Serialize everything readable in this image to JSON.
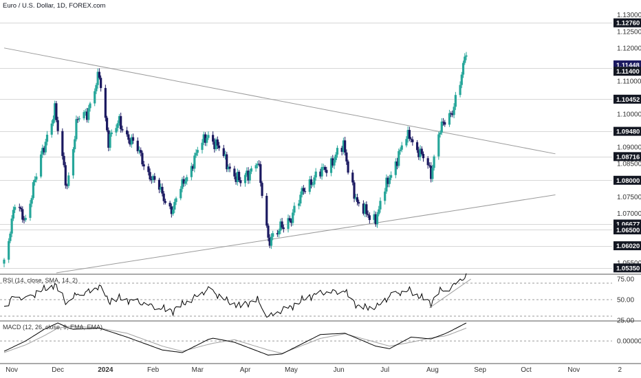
{
  "title": "Euro / U.S. Dollar, 1D, FOREX.com",
  "colors": {
    "up": "#26a69a",
    "down": "#1b1960",
    "line": "#000000",
    "signal": "#a0a0a0",
    "level": "#d6d6d6",
    "trend": "#9a9a9a",
    "label_dark": "#131722",
    "label_current": "#1b1960"
  },
  "chart_data": {
    "type": "candlestick",
    "price_axis": {
      "min": 1.0518,
      "max": 1.1316,
      "ticks": [
        "1.13000",
        "1.12500",
        "1.12000",
        "1.11500",
        "1.11000",
        "1.10000",
        "1.09500",
        "1.09000",
        "1.08500",
        "1.08000",
        "1.07500",
        "1.07000",
        "1.06500",
        "1.06000",
        "1.05500"
      ]
    },
    "x_axis": {
      "labels": [
        {
          "text": "Nov",
          "date": "2023-11-01",
          "bold": false
        },
        {
          "text": "Dec",
          "date": "2023-12-01",
          "bold": false
        },
        {
          "text": "2024",
          "date": "2024-01-01",
          "bold": true
        },
        {
          "text": "Feb",
          "date": "2024-02-01",
          "bold": false
        },
        {
          "text": "Mar",
          "date": "2024-03-01",
          "bold": false
        },
        {
          "text": "Apr",
          "date": "2024-04-01",
          "bold": false
        },
        {
          "text": "May",
          "date": "2024-05-01",
          "bold": false
        },
        {
          "text": "Jun",
          "date": "2024-06-01",
          "bold": false
        },
        {
          "text": "Jul",
          "date": "2024-07-01",
          "bold": false
        },
        {
          "text": "Aug",
          "date": "2024-08-01",
          "bold": false
        },
        {
          "text": "Sep",
          "date": "2024-09-01",
          "bold": false
        },
        {
          "text": "Oct",
          "date": "2024-10-01",
          "bold": false
        },
        {
          "text": "Nov",
          "date": "2024-11-01",
          "bold": false
        },
        {
          "text": "2",
          "date": "2024-12-01",
          "bold": false
        }
      ]
    },
    "levels": [
      {
        "value": "1.12760",
        "style": "dark"
      },
      {
        "value": "1.11448",
        "style": "current"
      },
      {
        "value": "1.11400",
        "style": "dark"
      },
      {
        "value": "1.10452",
        "style": "dark"
      },
      {
        "value": "1.09480",
        "style": "dark"
      },
      {
        "value": "1.08716",
        "style": "dark"
      },
      {
        "value": "1.08000",
        "style": "dark"
      },
      {
        "value": "1.06677",
        "style": "dark"
      },
      {
        "value": "1.06500",
        "style": "dark"
      },
      {
        "value": "1.06020",
        "style": "dark"
      },
      {
        "value": "1.05350",
        "style": "dark"
      }
    ],
    "trendlines": [
      {
        "from": {
          "date": "2023-10-27",
          "price": 1.12
        },
        "to": {
          "date": "2024-10-20",
          "price": 1.088
        }
      },
      {
        "from": {
          "date": "2023-11-30",
          "price": 1.052
        },
        "to": {
          "date": "2024-10-20",
          "price": 1.0756
        }
      }
    ],
    "anchors": [
      {
        "date": "2023-10-27",
        "close": 1.056
      },
      {
        "date": "2023-11-03",
        "close": 1.072
      },
      {
        "date": "2023-11-10",
        "close": 1.0685
      },
      {
        "date": "2023-11-22",
        "close": 1.0905
      },
      {
        "date": "2023-11-29",
        "close": 1.101
      },
      {
        "date": "2023-12-07",
        "close": 1.078
      },
      {
        "date": "2023-12-14",
        "close": 1.099
      },
      {
        "date": "2023-12-21",
        "close": 1.101
      },
      {
        "date": "2023-12-28",
        "close": 1.112
      },
      {
        "date": "2024-01-03",
        "close": 1.092
      },
      {
        "date": "2024-01-10",
        "close": 1.0975
      },
      {
        "date": "2024-01-23",
        "close": 1.088
      },
      {
        "date": "2024-02-02",
        "close": 1.079
      },
      {
        "date": "2024-02-14",
        "close": 1.071
      },
      {
        "date": "2024-02-23",
        "close": 1.082
      },
      {
        "date": "2024-03-08",
        "close": 1.0945
      },
      {
        "date": "2024-03-19",
        "close": 1.086
      },
      {
        "date": "2024-03-29",
        "close": 1.079
      },
      {
        "date": "2024-04-09",
        "close": 1.086
      },
      {
        "date": "2024-04-16",
        "close": 1.062
      },
      {
        "date": "2024-04-30",
        "close": 1.068
      },
      {
        "date": "2024-05-10",
        "close": 1.078
      },
      {
        "date": "2024-05-22",
        "close": 1.083
      },
      {
        "date": "2024-06-04",
        "close": 1.09
      },
      {
        "date": "2024-06-14",
        "close": 1.071
      },
      {
        "date": "2024-06-26",
        "close": 1.069
      },
      {
        "date": "2024-07-05",
        "close": 1.083
      },
      {
        "date": "2024-07-17",
        "close": 1.094
      },
      {
        "date": "2024-07-31",
        "close": 1.082
      },
      {
        "date": "2024-08-05",
        "close": 1.095
      },
      {
        "date": "2024-08-13",
        "close": 1.0995
      },
      {
        "date": "2024-08-21",
        "close": 1.114
      },
      {
        "date": "2024-08-23",
        "close": 1.119
      }
    ],
    "rsi": {
      "label": "RSI (14, close, SMA, 14, 2)",
      "min": 25,
      "max": 80,
      "ticks": [
        "75.00",
        "50.00",
        "25.00"
      ],
      "band": [
        30,
        70
      ],
      "anchors": [
        {
          "date": "2023-10-27",
          "value": 42
        },
        {
          "date": "2023-11-03",
          "value": 55
        },
        {
          "date": "2023-11-10",
          "value": 50
        },
        {
          "date": "2023-11-22",
          "value": 63
        },
        {
          "date": "2023-11-29",
          "value": 68
        },
        {
          "date": "2023-12-07",
          "value": 45
        },
        {
          "date": "2023-12-14",
          "value": 58
        },
        {
          "date": "2023-12-21",
          "value": 60
        },
        {
          "date": "2023-12-28",
          "value": 66
        },
        {
          "date": "2024-01-03",
          "value": 48
        },
        {
          "date": "2024-01-10",
          "value": 52
        },
        {
          "date": "2024-01-23",
          "value": 46
        },
        {
          "date": "2024-02-02",
          "value": 42
        },
        {
          "date": "2024-02-14",
          "value": 36
        },
        {
          "date": "2024-02-23",
          "value": 48
        },
        {
          "date": "2024-03-08",
          "value": 62
        },
        {
          "date": "2024-03-19",
          "value": 50
        },
        {
          "date": "2024-03-29",
          "value": 42
        },
        {
          "date": "2024-04-09",
          "value": 50
        },
        {
          "date": "2024-04-16",
          "value": 30
        },
        {
          "date": "2024-04-30",
          "value": 40
        },
        {
          "date": "2024-05-10",
          "value": 52
        },
        {
          "date": "2024-05-22",
          "value": 58
        },
        {
          "date": "2024-06-04",
          "value": 62
        },
        {
          "date": "2024-06-14",
          "value": 40
        },
        {
          "date": "2024-06-26",
          "value": 42
        },
        {
          "date": "2024-07-05",
          "value": 55
        },
        {
          "date": "2024-07-17",
          "value": 62
        },
        {
          "date": "2024-07-31",
          "value": 45
        },
        {
          "date": "2024-08-05",
          "value": 60
        },
        {
          "date": "2024-08-13",
          "value": 65
        },
        {
          "date": "2024-08-21",
          "value": 76
        },
        {
          "date": "2024-08-23",
          "value": 77
        }
      ],
      "trendline": {
        "from": {
          "date": "2024-07-30",
          "value": 40
        },
        "to": {
          "date": "2024-08-26",
          "value": 75
        }
      }
    },
    "macd": {
      "label": "MACD (12, 26, close, 9, EMA, EMA)",
      "min": -0.0085,
      "max": 0.0075,
      "ticks": [
        "0.00000"
      ],
      "anchors": [
        {
          "date": "2023-10-27",
          "macd": -0.004,
          "signal": -0.0045
        },
        {
          "date": "2023-11-10",
          "macd": 0.0,
          "signal": -0.0015
        },
        {
          "date": "2023-11-22",
          "macd": 0.0045,
          "signal": 0.002
        },
        {
          "date": "2023-12-01",
          "macd": 0.007,
          "signal": 0.005
        },
        {
          "date": "2023-12-10",
          "macd": 0.0045,
          "signal": 0.0058
        },
        {
          "date": "2023-12-28",
          "macd": 0.005,
          "signal": 0.005
        },
        {
          "date": "2024-01-15",
          "macd": 0.0015,
          "signal": 0.003
        },
        {
          "date": "2024-02-07",
          "macd": -0.0035,
          "signal": -0.002
        },
        {
          "date": "2024-02-20",
          "macd": -0.0045,
          "signal": -0.004
        },
        {
          "date": "2024-03-10",
          "macd": 0.0012,
          "signal": -0.001
        },
        {
          "date": "2024-03-25",
          "macd": -0.0005,
          "signal": 0.0005
        },
        {
          "date": "2024-04-16",
          "macd": -0.0055,
          "signal": -0.0035
        },
        {
          "date": "2024-04-25",
          "macd": -0.005,
          "signal": -0.0048
        },
        {
          "date": "2024-05-20",
          "macd": 0.0025,
          "signal": 0.001
        },
        {
          "date": "2024-06-05",
          "macd": 0.003,
          "signal": 0.0028
        },
        {
          "date": "2024-06-25",
          "macd": -0.002,
          "signal": -0.0005
        },
        {
          "date": "2024-07-04",
          "macd": -0.003,
          "signal": -0.002
        },
        {
          "date": "2024-07-18",
          "macd": 0.0015,
          "signal": -0.0005
        },
        {
          "date": "2024-07-31",
          "macd": 0.0008,
          "signal": 0.0012
        },
        {
          "date": "2024-08-10",
          "macd": 0.003,
          "signal": 0.002
        },
        {
          "date": "2024-08-23",
          "macd": 0.007,
          "signal": 0.005
        }
      ]
    }
  }
}
